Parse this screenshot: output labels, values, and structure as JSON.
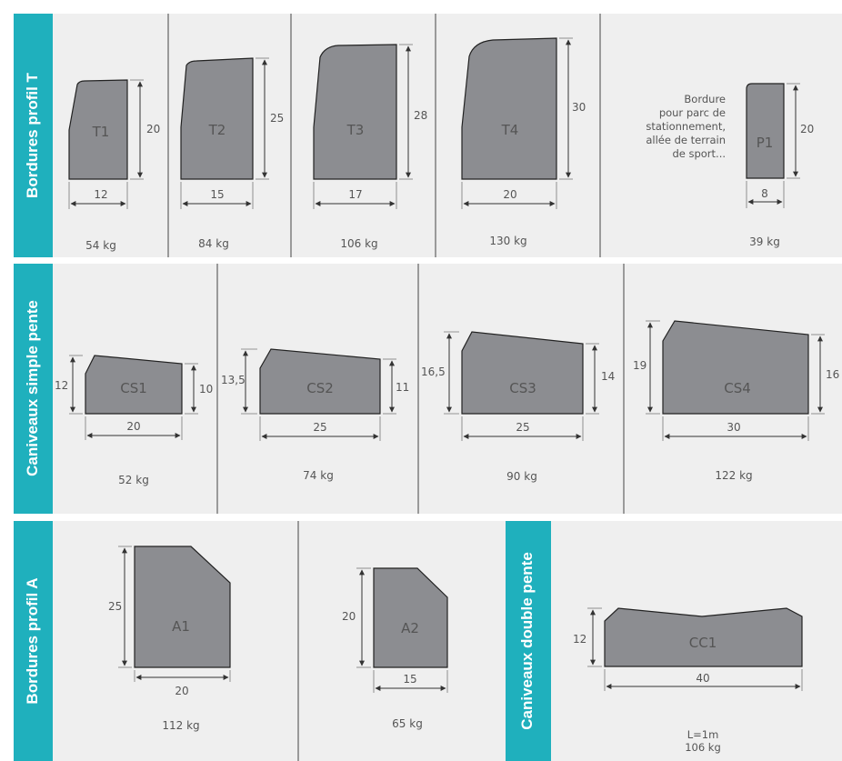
{
  "sections": {
    "profil_t": "Bordures profil T",
    "simple_pente": "Caniveaux simple pente",
    "profil_a": "Bordures profil A",
    "double_pente": "Caniveaux double pente"
  },
  "items": {
    "T1": {
      "name": "T1",
      "height": "20",
      "width": "12",
      "weight": "54 kg"
    },
    "T2": {
      "name": "T2",
      "height": "25",
      "width": "15",
      "weight": "84 kg"
    },
    "T3": {
      "name": "T3",
      "height": "28",
      "width": "17",
      "weight": "106 kg"
    },
    "T4": {
      "name": "T4",
      "height": "30",
      "width": "20",
      "weight": "130 kg"
    },
    "P1": {
      "name": "P1",
      "height": "20",
      "width": "8",
      "weight": "39 kg",
      "note": [
        "Bordure",
        "pour parc de",
        "stationnement,",
        "allée de terrain",
        "de sport..."
      ]
    },
    "CS1": {
      "name": "CS1",
      "left_height": "12",
      "right_height": "10",
      "width": "20",
      "weight": "52 kg"
    },
    "CS2": {
      "name": "CS2",
      "left_height": "13,5",
      "right_height": "11",
      "width": "25",
      "weight": "74 kg"
    },
    "CS3": {
      "name": "CS3",
      "left_height": "16,5",
      "right_height": "14",
      "width": "25",
      "weight": "90 kg"
    },
    "CS4": {
      "name": "CS4",
      "left_height": "19",
      "right_height": "16",
      "width": "30",
      "weight": "122 kg"
    },
    "A1": {
      "name": "A1",
      "height": "25",
      "width": "20",
      "weight": "112 kg"
    },
    "A2": {
      "name": "A2",
      "height": "20",
      "width": "15",
      "weight": "65 kg"
    },
    "CC1": {
      "name": "CC1",
      "height": "12",
      "width": "40",
      "length": "L=1m",
      "weight": "106 kg"
    }
  },
  "colors": {
    "band": "#1fb0bd",
    "panel": "#efefef",
    "shape": "#8c8d91"
  }
}
